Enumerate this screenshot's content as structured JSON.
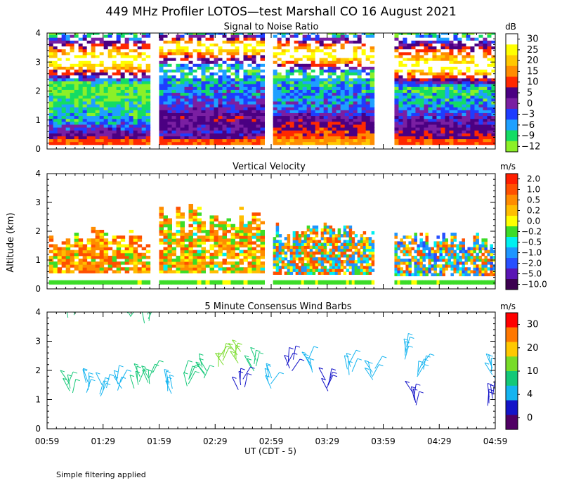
{
  "title": "449 MHz Profiler LOTOS—test Marshall CO 16 August 2021",
  "footnote": "Simple filtering applied",
  "shared_axes": {
    "ylabel": "Altitude (km)",
    "xlabel": "UT  (CDT - 5)",
    "y_ticks": [
      "0",
      "1",
      "2",
      "3",
      "4"
    ],
    "x_ticks": [
      "00:59",
      "01:29",
      "01:59",
      "02:29",
      "02:59",
      "03:29",
      "03:59",
      "04:29",
      "04:59"
    ]
  },
  "chart_data": [
    {
      "type": "heatmap",
      "title": "Signal to Noise Ratio",
      "xlabel": "UT  (CDT - 5)",
      "ylabel": "Altitude (km)",
      "ylim": [
        0,
        4
      ],
      "xlim": [
        "00:59",
        "04:59"
      ],
      "colorbar": {
        "unit": "dB",
        "labels": [
          "30",
          "25",
          "20",
          "15",
          "10",
          "5",
          "0",
          "−3",
          "−6",
          "−9",
          "−12"
        ],
        "colors": [
          "#ffffff",
          "#ffff00",
          "#ffc800",
          "#ff8c00",
          "#ff2800",
          "#4b0082",
          "#7a1fa2",
          "#1e3cff",
          "#1ea0ff",
          "#14dc64",
          "#8cf028"
        ]
      },
      "data_segments_ut": [
        [
          "01:00",
          "01:53"
        ],
        [
          "01:59",
          "02:54"
        ],
        [
          "03:00",
          "03:53"
        ],
        [
          "04:05",
          "04:58"
        ]
      ],
      "profiles_by_segment": [
        [
          [
            0.2,
            10
          ],
          [
            0.35,
            5
          ],
          [
            0.6,
            0
          ],
          [
            0.9,
            -6
          ],
          [
            1.4,
            -9
          ],
          [
            2.2,
            -12
          ],
          [
            3.0,
            30
          ],
          [
            4.0,
            -12
          ]
        ],
        [
          [
            0.2,
            10
          ],
          [
            0.5,
            0
          ],
          [
            1.0,
            5
          ],
          [
            1.6,
            -3
          ],
          [
            2.2,
            -6
          ],
          [
            2.8,
            -9
          ],
          [
            3.5,
            30
          ],
          [
            4.0,
            -12
          ]
        ],
        [
          [
            0.2,
            15
          ],
          [
            0.5,
            10
          ],
          [
            0.9,
            5
          ],
          [
            1.3,
            -3
          ],
          [
            1.9,
            -6
          ],
          [
            2.6,
            -9
          ],
          [
            3.2,
            30
          ],
          [
            4.0,
            -12
          ]
        ],
        [
          [
            0.2,
            10
          ],
          [
            0.5,
            5
          ],
          [
            1.0,
            0
          ],
          [
            1.5,
            -6
          ],
          [
            2.1,
            -9
          ],
          [
            2.8,
            30
          ],
          [
            4.0,
            -12
          ]
        ]
      ]
    },
    {
      "type": "heatmap",
      "title": "Vertical Velocity",
      "xlabel": "UT  (CDT - 5)",
      "ylabel": "Altitude (km)",
      "ylim": [
        0,
        4
      ],
      "xlim": [
        "00:59",
        "04:59"
      ],
      "colorbar": {
        "unit": "m/s",
        "labels": [
          "2.0",
          "1.0",
          "0.5",
          "0.2",
          "0.0",
          "−0.2",
          "−0.5",
          "−1.0",
          "−2.0",
          "−5.0",
          "−10.0"
        ],
        "colors": [
          "#ff1e00",
          "#ff5000",
          "#ff8c00",
          "#ffbe00",
          "#ffff00",
          "#3cdc28",
          "#00f0f0",
          "#1e96ff",
          "#2850ff",
          "#5a14b4",
          "#3c0050"
        ]
      },
      "data_segments_ut": [
        [
          "01:00",
          "01:53"
        ],
        [
          "01:59",
          "02:54"
        ],
        [
          "03:00",
          "03:53"
        ],
        [
          "04:05",
          "04:58"
        ]
      ],
      "velocity_coverage_km": [
        [
          0.55,
          2.1
        ],
        [
          0.55,
          2.95
        ],
        [
          0.5,
          2.3
        ],
        [
          0.45,
          1.95
        ]
      ],
      "segment_mean_velocity_ms": [
        0.5,
        0.3,
        0.0,
        -0.3
      ]
    },
    {
      "type": "scatter",
      "title": "5 Minute Consensus Wind Barbs",
      "xlabel": "UT  (CDT - 5)",
      "ylabel": "Altitude (km)",
      "ylim": [
        0,
        4
      ],
      "xlim": [
        "00:59",
        "04:59"
      ],
      "colorbar": {
        "unit": "m/s",
        "labels": [
          "30",
          "20",
          "10",
          "4",
          "0"
        ],
        "colors": [
          "#ff0000",
          "#ff7800",
          "#ffc800",
          "#78dc28",
          "#14c878",
          "#14b4f0",
          "#1414c8",
          "#500064"
        ]
      },
      "barbs": [
        {
          "t": "01:11",
          "z": 1.4,
          "spd": 9
        },
        {
          "t": "01:20",
          "z": 1.45,
          "spd": 5
        },
        {
          "t": "01:29",
          "z": 1.3,
          "spd": 5
        },
        {
          "t": "01:38",
          "z": 1.5,
          "spd": 6
        },
        {
          "t": "01:47",
          "z": 1.6,
          "spd": 8
        },
        {
          "t": "01:55",
          "z": 1.7,
          "spd": 9
        },
        {
          "t": "02:05",
          "z": 1.4,
          "spd": 6
        },
        {
          "t": "02:14",
          "z": 1.65,
          "spd": 7
        },
        {
          "t": "02:23",
          "z": 1.9,
          "spd": 9
        },
        {
          "t": "02:32",
          "z": 2.3,
          "spd": 11
        },
        {
          "t": "02:41",
          "z": 2.45,
          "spd": 12
        },
        {
          "t": "02:50",
          "z": 2.15,
          "spd": 8
        },
        {
          "t": "02:43",
          "z": 1.5,
          "spd": 3
        },
        {
          "t": "02:59",
          "z": 1.6,
          "spd": 5
        },
        {
          "t": "03:09",
          "z": 2.2,
          "spd": 3
        },
        {
          "t": "03:20",
          "z": 2.15,
          "spd": 6
        },
        {
          "t": "03:29",
          "z": 1.5,
          "spd": 3
        },
        {
          "t": "03:41",
          "z": 2.05,
          "spd": 5
        },
        {
          "t": "03:53",
          "z": 1.85,
          "spd": 5
        },
        {
          "t": "04:12",
          "z": 2.6,
          "spd": 6
        },
        {
          "t": "04:19",
          "z": 1.95,
          "spd": 5
        },
        {
          "t": "04:15",
          "z": 1.0,
          "spd": 3
        },
        {
          "t": "04:56",
          "z": 1.0,
          "spd": 3
        },
        {
          "t": "04:58",
          "z": 1.95,
          "spd": 5
        },
        {
          "t": "01:12",
          "z": 4.0,
          "spd": 9
        },
        {
          "t": "01:42",
          "z": 4.0,
          "spd": 9
        },
        {
          "t": "01:53",
          "z": 3.8,
          "spd": 9
        }
      ]
    }
  ]
}
